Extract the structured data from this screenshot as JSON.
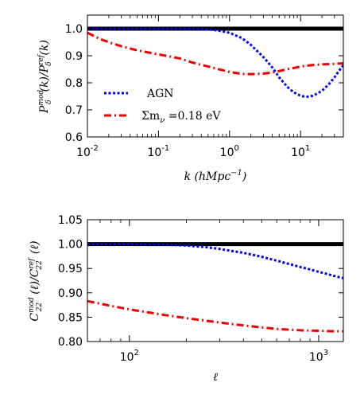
{
  "colors": {
    "agn": "#0000ee",
    "nu": "#ee0000",
    "ref": "#000000"
  },
  "chart_data": [
    {
      "type": "line",
      "xscale": "log",
      "xlim": [
        0.01,
        40
      ],
      "ylim": [
        0.6,
        1.05
      ],
      "xticks": [
        {
          "v": 0.01,
          "m": "10",
          "e": "-2"
        },
        {
          "v": 0.1,
          "m": "10",
          "e": "-1"
        },
        {
          "v": 1,
          "m": "10",
          "e": "0"
        },
        {
          "v": 10,
          "m": "10",
          "e": "1"
        }
      ],
      "yticks": [
        {
          "v": 0.6,
          "t": "0.6"
        },
        {
          "v": 0.7,
          "t": "0.7"
        },
        {
          "v": 0.8,
          "t": "0.8"
        },
        {
          "v": 0.9,
          "t": "0.9"
        },
        {
          "v": 1.0,
          "t": "1.0"
        }
      ],
      "xlabel_parts": [
        "k",
        " (",
        "h",
        "Mpc",
        "−1",
        ")"
      ],
      "ylabel_parts": [
        "P",
        "mod",
        "δ",
        "(k)/",
        "P",
        "ref",
        "δ",
        "(k)"
      ],
      "legend": {
        "placement": "lower-left",
        "entries": [
          "AGN",
          "Σm",
          "ν",
          " =0.18 eV"
        ]
      },
      "series": [
        {
          "name": "ref",
          "x": [
            0.01,
            40
          ],
          "y": [
            1.0,
            1.0
          ]
        },
        {
          "name": "AGN",
          "x": [
            0.01,
            0.1,
            0.3,
            0.5,
            0.7,
            1.0,
            1.5,
            2.0,
            3.0,
            4.0,
            5.0,
            6.5,
            8.0,
            10.0,
            12.0,
            15.0,
            20.0,
            25.0,
            30.0,
            35.0,
            40.0
          ],
          "y": [
            1.0,
            1.0,
            1.0,
            0.998,
            0.993,
            0.985,
            0.965,
            0.94,
            0.895,
            0.857,
            0.82,
            0.785,
            0.765,
            0.752,
            0.748,
            0.752,
            0.77,
            0.795,
            0.82,
            0.845,
            0.865
          ]
        },
        {
          "name": "Σmν=0.18 eV",
          "x": [
            0.01,
            0.015,
            0.02,
            0.03,
            0.05,
            0.1,
            0.2,
            0.3,
            0.5,
            1.0,
            1.5,
            2.0,
            3.0,
            4.0,
            6.0,
            10.0,
            15.0,
            20.0,
            30.0,
            40.0
          ],
          "y": [
            0.985,
            0.962,
            0.95,
            0.935,
            0.92,
            0.905,
            0.89,
            0.875,
            0.86,
            0.84,
            0.833,
            0.832,
            0.834,
            0.838,
            0.848,
            0.86,
            0.866,
            0.868,
            0.87,
            0.872
          ]
        }
      ]
    },
    {
      "type": "line",
      "xscale": "log",
      "xlim": [
        60,
        1350
      ],
      "ylim": [
        0.8,
        1.05
      ],
      "xticks": [
        {
          "v": 100,
          "m": "10",
          "e": "2"
        },
        {
          "v": 1000,
          "m": "10",
          "e": "3"
        }
      ],
      "yticks": [
        {
          "v": 0.8,
          "t": "0.80"
        },
        {
          "v": 0.85,
          "t": "0.85"
        },
        {
          "v": 0.9,
          "t": "0.90"
        },
        {
          "v": 0.95,
          "t": "0.95"
        },
        {
          "v": 1.0,
          "t": "1.00"
        },
        {
          "v": 1.05,
          "t": "1.05"
        }
      ],
      "xlabel_parts": [
        "ℓ"
      ],
      "ylabel_parts": [
        "C",
        "mod",
        "22",
        "(ℓ)/",
        "C",
        "ref",
        "22",
        "(ℓ)"
      ],
      "series": [
        {
          "name": "ref",
          "x": [
            60,
            1350
          ],
          "y": [
            1.0,
            1.0
          ]
        },
        {
          "name": "AGN",
          "x": [
            60,
            100,
            150,
            200,
            250,
            300,
            400,
            500,
            600,
            700,
            800,
            900,
            1000,
            1100,
            1200,
            1350
          ],
          "y": [
            1.0,
            1.0,
            0.999,
            0.997,
            0.994,
            0.99,
            0.982,
            0.974,
            0.966,
            0.959,
            0.953,
            0.948,
            0.943,
            0.939,
            0.935,
            0.93
          ]
        },
        {
          "name": "Σmν=0.18 eV",
          "x": [
            60,
            80,
            100,
            150,
            200,
            300,
            400,
            500,
            600,
            800,
            1000,
            1200,
            1350
          ],
          "y": [
            0.883,
            0.873,
            0.866,
            0.855,
            0.848,
            0.839,
            0.833,
            0.829,
            0.826,
            0.823,
            0.822,
            0.821,
            0.821
          ]
        }
      ]
    }
  ]
}
